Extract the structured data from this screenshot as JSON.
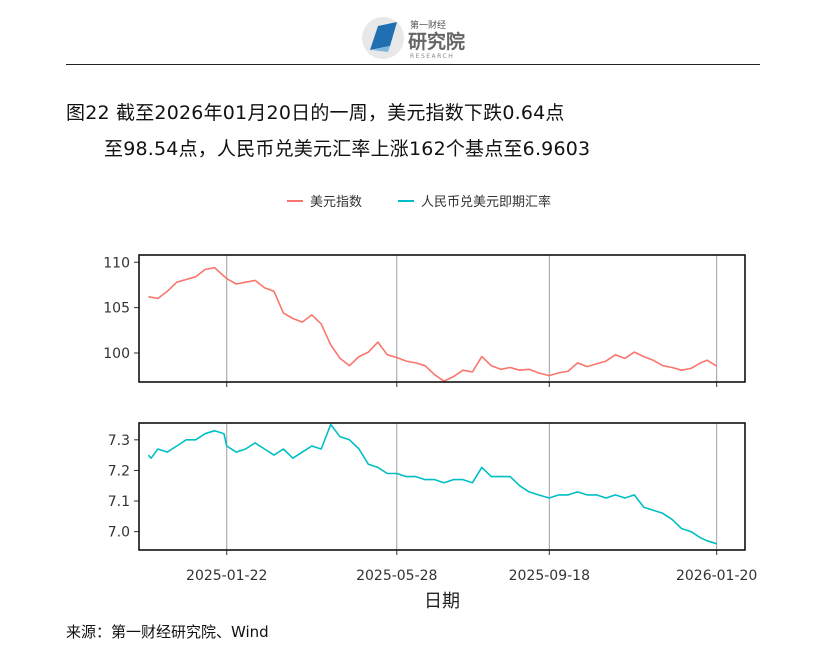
{
  "header": {
    "logo_text": "研究院",
    "logo_subtext": "第一财经",
    "logo_research": "RESEARCH"
  },
  "title": {
    "line1": "图22  截至2026年01月20日的一周，美元指数下跌0.64点",
    "line2": "至98.54点，人民币兑美元汇率上涨162个基点至6.9603"
  },
  "source": "来源：第一财经研究院、Wind",
  "colors": {
    "usd": "#F8766D",
    "cny": "#00BFC4"
  },
  "chart_data": {
    "type": "line",
    "xlabel": "日期",
    "x_ticks": [
      "2025-01-22",
      "2025-05-28",
      "2025-09-18",
      "2026-01-20"
    ],
    "x_range": [
      "2024-11-18",
      "2026-02-10"
    ],
    "legend_position": "top",
    "series": [
      {
        "name": "美元指数",
        "panel": "top",
        "ylim": [
          96.8,
          110.8
        ],
        "yticks": [
          100,
          105,
          110
        ],
        "points": [
          [
            "2024-11-25",
            106.2
          ],
          [
            "2024-12-02",
            106.0
          ],
          [
            "2024-12-09",
            106.8
          ],
          [
            "2024-12-16",
            107.8
          ],
          [
            "2024-12-23",
            108.1
          ],
          [
            "2024-12-30",
            108.4
          ],
          [
            "2025-01-06",
            109.2
          ],
          [
            "2025-01-13",
            109.4
          ],
          [
            "2025-01-22",
            108.2
          ],
          [
            "2025-01-29",
            107.6
          ],
          [
            "2025-02-05",
            107.8
          ],
          [
            "2025-02-12",
            108.0
          ],
          [
            "2025-02-19",
            107.2
          ],
          [
            "2025-02-26",
            106.8
          ],
          [
            "2025-03-05",
            104.4
          ],
          [
            "2025-03-12",
            103.8
          ],
          [
            "2025-03-19",
            103.4
          ],
          [
            "2025-03-26",
            104.2
          ],
          [
            "2025-04-02",
            103.2
          ],
          [
            "2025-04-09",
            100.9
          ],
          [
            "2025-04-16",
            99.4
          ],
          [
            "2025-04-23",
            98.6
          ],
          [
            "2025-04-30",
            99.6
          ],
          [
            "2025-05-07",
            100.1
          ],
          [
            "2025-05-14",
            101.2
          ],
          [
            "2025-05-21",
            99.8
          ],
          [
            "2025-05-28",
            99.5
          ],
          [
            "2025-06-04",
            99.1
          ],
          [
            "2025-06-11",
            98.9
          ],
          [
            "2025-06-18",
            98.6
          ],
          [
            "2025-06-25",
            97.6
          ],
          [
            "2025-07-02",
            96.9
          ],
          [
            "2025-07-09",
            97.4
          ],
          [
            "2025-07-16",
            98.1
          ],
          [
            "2025-07-23",
            97.9
          ],
          [
            "2025-07-30",
            99.6
          ],
          [
            "2025-08-06",
            98.6
          ],
          [
            "2025-08-13",
            98.2
          ],
          [
            "2025-08-20",
            98.4
          ],
          [
            "2025-08-27",
            98.1
          ],
          [
            "2025-09-03",
            98.2
          ],
          [
            "2025-09-10",
            97.8
          ],
          [
            "2025-09-18",
            97.5
          ],
          [
            "2025-09-25",
            97.8
          ],
          [
            "2025-10-02",
            98.0
          ],
          [
            "2025-10-09",
            98.9
          ],
          [
            "2025-10-16",
            98.5
          ],
          [
            "2025-10-23",
            98.8
          ],
          [
            "2025-10-30",
            99.1
          ],
          [
            "2025-11-06",
            99.8
          ],
          [
            "2025-11-13",
            99.4
          ],
          [
            "2025-11-20",
            100.1
          ],
          [
            "2025-11-27",
            99.6
          ],
          [
            "2025-12-04",
            99.2
          ],
          [
            "2025-12-11",
            98.6
          ],
          [
            "2025-12-18",
            98.4
          ],
          [
            "2025-12-25",
            98.1
          ],
          [
            "2026-01-01",
            98.3
          ],
          [
            "2026-01-08",
            98.9
          ],
          [
            "2026-01-13",
            99.2
          ],
          [
            "2026-01-20",
            98.54
          ]
        ]
      },
      {
        "name": "人民币兑美元即期汇率",
        "panel": "bottom",
        "ylim": [
          6.94,
          7.355
        ],
        "yticks": [
          7.0,
          7.1,
          7.2,
          7.3
        ],
        "points": [
          [
            "2024-11-25",
            7.25
          ],
          [
            "2024-11-27",
            7.24
          ],
          [
            "2024-12-02",
            7.27
          ],
          [
            "2024-12-09",
            7.26
          ],
          [
            "2024-12-16",
            7.28
          ],
          [
            "2024-12-23",
            7.3
          ],
          [
            "2024-12-30",
            7.3
          ],
          [
            "2025-01-06",
            7.32
          ],
          [
            "2025-01-13",
            7.33
          ],
          [
            "2025-01-20",
            7.32
          ],
          [
            "2025-01-22",
            7.28
          ],
          [
            "2025-01-29",
            7.26
          ],
          [
            "2025-02-05",
            7.27
          ],
          [
            "2025-02-12",
            7.29
          ],
          [
            "2025-02-19",
            7.27
          ],
          [
            "2025-02-26",
            7.25
          ],
          [
            "2025-03-05",
            7.27
          ],
          [
            "2025-03-12",
            7.24
          ],
          [
            "2025-03-19",
            7.26
          ],
          [
            "2025-03-26",
            7.28
          ],
          [
            "2025-04-02",
            7.27
          ],
          [
            "2025-04-09",
            7.35
          ],
          [
            "2025-04-16",
            7.31
          ],
          [
            "2025-04-23",
            7.3
          ],
          [
            "2025-04-30",
            7.27
          ],
          [
            "2025-05-07",
            7.22
          ],
          [
            "2025-05-14",
            7.21
          ],
          [
            "2025-05-21",
            7.19
          ],
          [
            "2025-05-28",
            7.19
          ],
          [
            "2025-06-04",
            7.18
          ],
          [
            "2025-06-11",
            7.18
          ],
          [
            "2025-06-18",
            7.17
          ],
          [
            "2025-06-25",
            7.17
          ],
          [
            "2025-07-02",
            7.16
          ],
          [
            "2025-07-09",
            7.17
          ],
          [
            "2025-07-16",
            7.17
          ],
          [
            "2025-07-23",
            7.16
          ],
          [
            "2025-07-30",
            7.21
          ],
          [
            "2025-08-06",
            7.18
          ],
          [
            "2025-08-13",
            7.18
          ],
          [
            "2025-08-20",
            7.18
          ],
          [
            "2025-08-27",
            7.15
          ],
          [
            "2025-09-03",
            7.13
          ],
          [
            "2025-09-10",
            7.12
          ],
          [
            "2025-09-18",
            7.11
          ],
          [
            "2025-09-25",
            7.12
          ],
          [
            "2025-10-02",
            7.12
          ],
          [
            "2025-10-09",
            7.13
          ],
          [
            "2025-10-16",
            7.12
          ],
          [
            "2025-10-23",
            7.12
          ],
          [
            "2025-10-30",
            7.11
          ],
          [
            "2025-11-06",
            7.12
          ],
          [
            "2025-11-13",
            7.11
          ],
          [
            "2025-11-20",
            7.12
          ],
          [
            "2025-11-27",
            7.08
          ],
          [
            "2025-12-04",
            7.07
          ],
          [
            "2025-12-11",
            7.06
          ],
          [
            "2025-12-18",
            7.04
          ],
          [
            "2025-12-25",
            7.01
          ],
          [
            "2026-01-01",
            7.0
          ],
          [
            "2026-01-08",
            6.98
          ],
          [
            "2026-01-13",
            6.97
          ],
          [
            "2026-01-20",
            6.9603
          ]
        ]
      }
    ]
  }
}
